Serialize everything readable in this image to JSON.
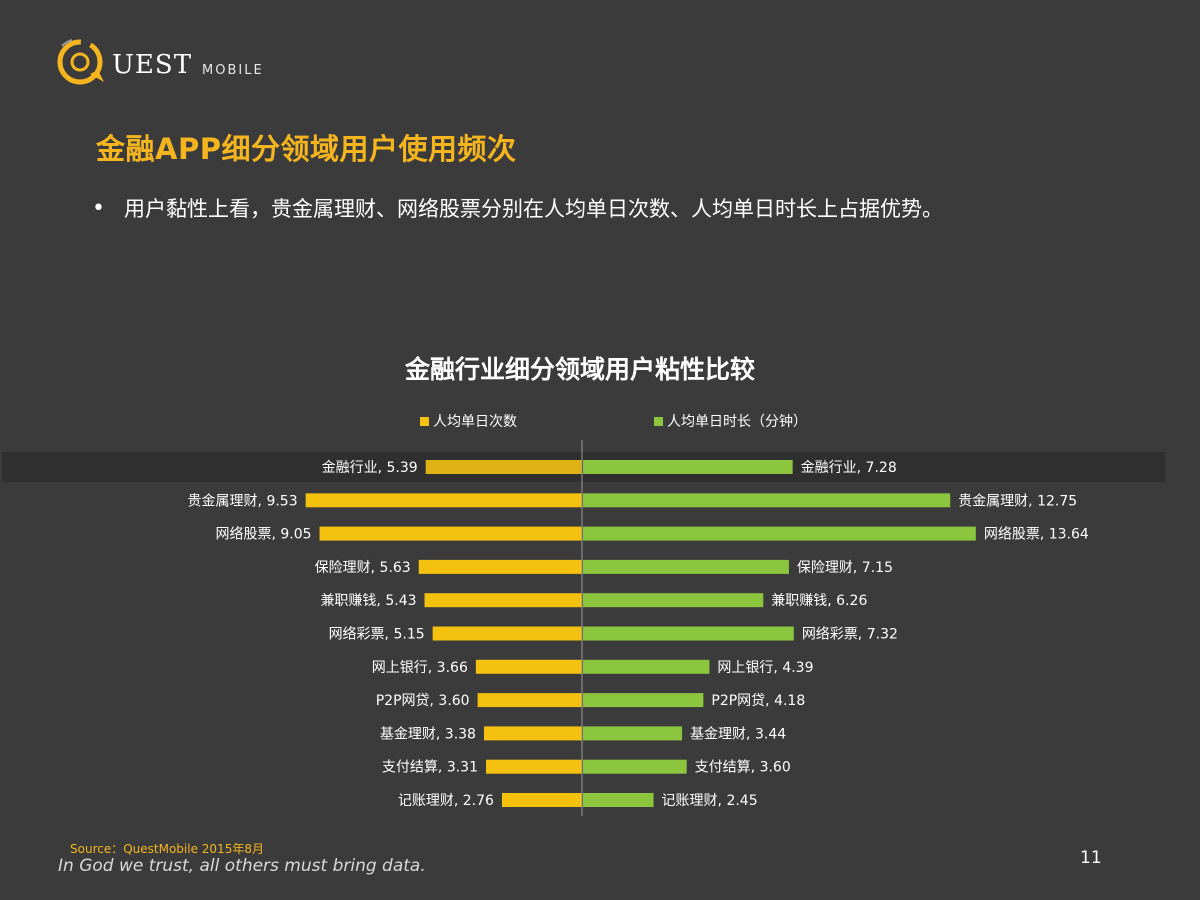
{
  "logo": {
    "text": "UEST",
    "sub": "MOBILE",
    "icon": "quest-q-logo-icon"
  },
  "slide": {
    "title": "金融APP细分领域用户使用频次",
    "bullet": "用户黏性上看，贵金属理财、网络股票分别在人均单日次数、人均单日时长上占据优势。",
    "source": "Source：QuestMobile   2015年8月",
    "motto": "In God we trust, all others must bring data.",
    "page_number": "11"
  },
  "colors": {
    "left": "#f5c10f",
    "left_highlight": "#dfb216",
    "right": "#8cc63f",
    "highlight_row": "#2f2f2f",
    "accent": "#f5b51e"
  },
  "chart_data": {
    "type": "bar",
    "title": "金融行业细分领域用户粘性比较",
    "categories": [
      "金融行业",
      "贵金属理财",
      "网络股票",
      "保险理财",
      "兼职赚钱",
      "网络彩票",
      "网上银行",
      "P2P网贷",
      "基金理财",
      "支付结算",
      "记账理财"
    ],
    "series": [
      {
        "name": "人均单日次数",
        "values": [
          5.39,
          9.53,
          9.05,
          5.63,
          5.43,
          5.15,
          3.66,
          3.6,
          3.38,
          3.31,
          2.76
        ],
        "labels": [
          "金融行业, 5.39",
          "贵金属理财, 9.53",
          "网络股票, 9.05",
          "保险理财, 5.63",
          "兼职赚钱, 5.43",
          "网络彩票, 5.15",
          "网上银行, 3.66",
          "P2P网贷, 3.60",
          "基金理财, 3.38",
          "支付结算, 3.31",
          "记账理财, 2.76"
        ]
      },
      {
        "name": "人均单日时长（分钟）",
        "values": [
          7.28,
          12.75,
          13.64,
          7.15,
          6.26,
          7.32,
          4.39,
          4.18,
          3.44,
          3.6,
          2.45
        ],
        "labels": [
          "金融行业, 7.28",
          "贵金属理财, 12.75",
          "网络股票, 13.64",
          "保险理财, 7.15",
          "兼职赚钱, 6.26",
          "网络彩票, 7.32",
          "网上银行, 4.39",
          "P2P网贷, 4.18",
          "基金理财, 3.44",
          "支付结算, 3.60",
          "记账理财, 2.45"
        ]
      }
    ],
    "highlight_category": "金融行业",
    "legend_position": "top",
    "grid": false
  }
}
